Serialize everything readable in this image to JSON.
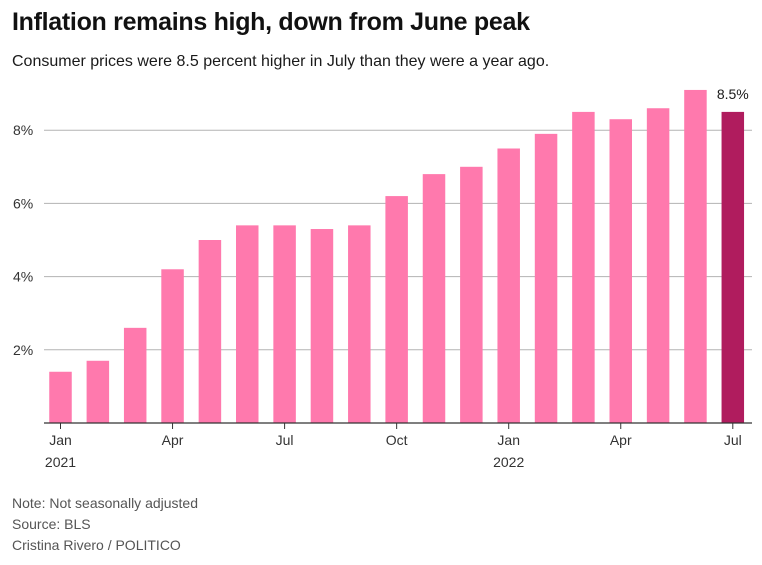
{
  "header": {
    "title": "Inflation remains high, down from June peak",
    "subtitle": "Consumer prices were 8.5 percent higher in July than they were a year ago."
  },
  "footer": {
    "note": "Note: Not seasonally adjusted",
    "source": "Source: BLS",
    "credit": "Cristina Rivero / POLITICO"
  },
  "colors": {
    "bar": "#ff79ad",
    "highlight": "#b01c5e",
    "grid": "#b3b3b3",
    "axis": "#333333"
  },
  "chart_data": {
    "type": "bar",
    "categories": [
      "Jan 2021",
      "Feb 2021",
      "Mar 2021",
      "Apr 2021",
      "May 2021",
      "Jun 2021",
      "Jul 2021",
      "Aug 2021",
      "Sep 2021",
      "Oct 2021",
      "Nov 2021",
      "Dec 2021",
      "Jan 2022",
      "Feb 2022",
      "Mar 2022",
      "Apr 2022",
      "May 2022",
      "Jun 2022",
      "Jul 2022"
    ],
    "values": [
      1.4,
      1.7,
      2.6,
      4.2,
      5.0,
      5.4,
      5.4,
      5.3,
      5.4,
      6.2,
      6.8,
      7.0,
      7.5,
      7.9,
      8.5,
      8.3,
      8.6,
      9.1,
      8.5
    ],
    "ylim": [
      0,
      9.1
    ],
    "yticks": [
      {
        "value": 2,
        "label": "2%"
      },
      {
        "value": 4,
        "label": "4%"
      },
      {
        "value": 6,
        "label": "6%"
      },
      {
        "value": 8,
        "label": "8%"
      }
    ],
    "xticks": [
      {
        "index": 0,
        "label": "Jan",
        "sublabel": "2021"
      },
      {
        "index": 3,
        "label": "Apr",
        "sublabel": ""
      },
      {
        "index": 6,
        "label": "Jul",
        "sublabel": ""
      },
      {
        "index": 9,
        "label": "Oct",
        "sublabel": ""
      },
      {
        "index": 12,
        "label": "Jan",
        "sublabel": "2022"
      },
      {
        "index": 15,
        "label": "Apr",
        "sublabel": ""
      },
      {
        "index": 18,
        "label": "Jul",
        "sublabel": ""
      }
    ],
    "highlight_index": 18,
    "annotation": {
      "index": 18,
      "text": "8.5%"
    },
    "grid": true,
    "legend": "none"
  }
}
